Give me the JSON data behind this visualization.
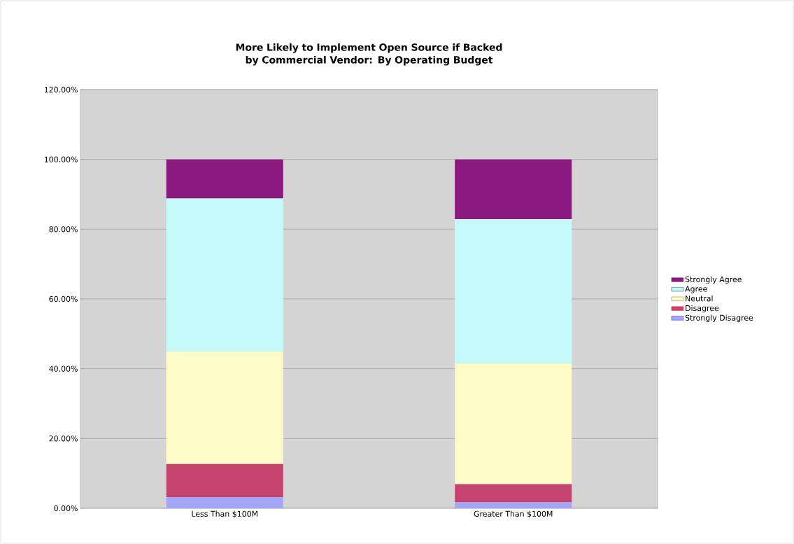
{
  "chart_data": {
    "type": "bar",
    "stacked": true,
    "title": "More Likely to Implement Open Source if Backed by Commercial Vendor: By Operating Budget",
    "categories": [
      "Less Than $100M",
      "Greater Than $100M"
    ],
    "series": [
      {
        "name": "Strongly Disagree",
        "color": "#a6a6f6",
        "values": [
          3.2,
          1.7
        ]
      },
      {
        "name": "Disagree",
        "color": "#c4436f",
        "values": [
          9.5,
          5.2
        ]
      },
      {
        "name": "Neutral",
        "color": "#fdfcc8",
        "values": [
          32.2,
          34.6
        ]
      },
      {
        "name": "Agree",
        "color": "#c6fafa",
        "values": [
          43.9,
          41.4
        ]
      },
      {
        "name": "Strongly Agree",
        "color": "#8b1a7e",
        "values": [
          11.2,
          17.1
        ]
      }
    ],
    "ylim": [
      0,
      120
    ],
    "yticks": [
      {
        "value": 0,
        "label": "0.00%"
      },
      {
        "value": 20,
        "label": "20.00%"
      },
      {
        "value": 40,
        "label": "40.00%"
      },
      {
        "value": 60,
        "label": "60.00%"
      },
      {
        "value": 80,
        "label": "80.00%"
      },
      {
        "value": 100,
        "label": "100.00%"
      },
      {
        "value": 120,
        "label": "120.00%"
      }
    ],
    "grid": "y",
    "legend": "right"
  }
}
